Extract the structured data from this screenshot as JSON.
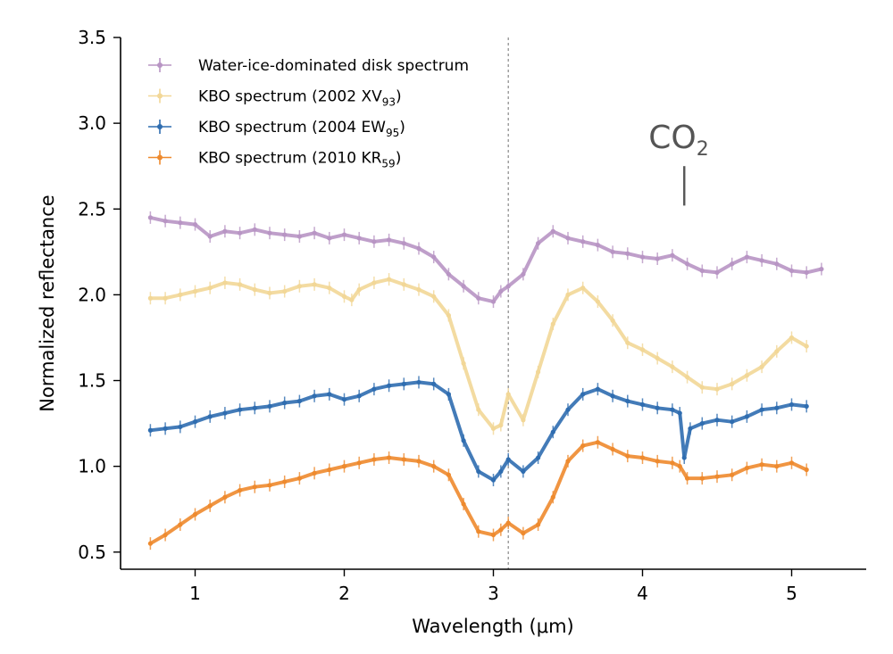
{
  "chart_data": {
    "type": "line",
    "xlabel": "Wavelength (μm)",
    "ylabel": "Normalized reflectance",
    "xlim": [
      0.5,
      5.5
    ],
    "ylim": [
      0.4,
      3.5
    ],
    "x_ticks": [
      1,
      2,
      3,
      4,
      5
    ],
    "y_ticks": [
      0.5,
      1.0,
      1.5,
      2.0,
      2.5,
      3.0,
      3.5
    ],
    "x_tick_labels": [
      "1",
      "2",
      "3",
      "4",
      "5"
    ],
    "y_tick_labels": [
      "0.5",
      "1.0",
      "1.5",
      "2.0",
      "2.5",
      "3.0",
      "3.5"
    ],
    "grid": false,
    "legend_position": "top-left",
    "reference_line": {
      "x": 3.1,
      "style": "dotted",
      "color": "#888888"
    },
    "annotation": {
      "text": "CO",
      "subscript": "2",
      "x": 4.28,
      "y_from": 2.52,
      "y_to": 2.75
    },
    "series": [
      {
        "name": "Water-ice-dominated disk spectrum",
        "legend_main": "Water-ice-dominated disk spectrum",
        "legend_sub": "",
        "legend_tail": "",
        "color": "#b895c4",
        "x": [
          0.7,
          0.8,
          0.9,
          1.0,
          1.1,
          1.2,
          1.3,
          1.4,
          1.5,
          1.6,
          1.7,
          1.8,
          1.9,
          2.0,
          2.1,
          2.2,
          2.3,
          2.4,
          2.5,
          2.6,
          2.7,
          2.8,
          2.9,
          3.0,
          3.05,
          3.1,
          3.2,
          3.3,
          3.4,
          3.5,
          3.6,
          3.7,
          3.8,
          3.9,
          4.0,
          4.1,
          4.2,
          4.3,
          4.4,
          4.5,
          4.6,
          4.7,
          4.8,
          4.9,
          5.0,
          5.1,
          5.2
        ],
        "y": [
          2.45,
          2.43,
          2.42,
          2.41,
          2.34,
          2.37,
          2.36,
          2.38,
          2.36,
          2.35,
          2.34,
          2.36,
          2.33,
          2.35,
          2.33,
          2.31,
          2.32,
          2.3,
          2.27,
          2.22,
          2.12,
          2.05,
          1.98,
          1.96,
          2.02,
          2.05,
          2.12,
          2.3,
          2.37,
          2.33,
          2.31,
          2.29,
          2.25,
          2.24,
          2.22,
          2.21,
          2.23,
          2.18,
          2.14,
          2.13,
          2.18,
          2.22,
          2.2,
          2.18,
          2.14,
          2.13,
          2.15
        ]
      },
      {
        "name": "KBO spectrum (2002 XV93)",
        "legend_main": "KBO spectrum (2002 XV",
        "legend_sub": "93",
        "legend_tail": ")",
        "color": "#f2d797",
        "x": [
          0.7,
          0.8,
          0.9,
          1.0,
          1.1,
          1.2,
          1.3,
          1.4,
          1.5,
          1.6,
          1.7,
          1.8,
          1.9,
          2.0,
          2.05,
          2.1,
          2.2,
          2.3,
          2.4,
          2.5,
          2.6,
          2.7,
          2.8,
          2.9,
          3.0,
          3.05,
          3.1,
          3.2,
          3.3,
          3.4,
          3.5,
          3.6,
          3.7,
          3.8,
          3.9,
          4.0,
          4.1,
          4.2,
          4.3,
          4.4,
          4.5,
          4.6,
          4.7,
          4.8,
          4.9,
          5.0,
          5.1
        ],
        "y": [
          1.98,
          1.98,
          2.0,
          2.02,
          2.04,
          2.07,
          2.06,
          2.03,
          2.01,
          2.02,
          2.05,
          2.06,
          2.04,
          1.99,
          1.97,
          2.03,
          2.07,
          2.09,
          2.06,
          2.03,
          1.99,
          1.88,
          1.6,
          1.33,
          1.22,
          1.24,
          1.42,
          1.27,
          1.55,
          1.83,
          2.0,
          2.04,
          1.96,
          1.85,
          1.72,
          1.68,
          1.63,
          1.58,
          1.52,
          1.46,
          1.45,
          1.48,
          1.53,
          1.58,
          1.67,
          1.75,
          1.7
        ]
      },
      {
        "name": "KBO spectrum (2004 EW95)",
        "legend_main": "KBO spectrum (2004 EW",
        "legend_sub": "95",
        "legend_tail": ")",
        "color": "#2f6db0",
        "x": [
          0.7,
          0.8,
          0.9,
          1.0,
          1.1,
          1.2,
          1.3,
          1.4,
          1.5,
          1.6,
          1.7,
          1.8,
          1.9,
          2.0,
          2.1,
          2.2,
          2.3,
          2.4,
          2.5,
          2.6,
          2.7,
          2.8,
          2.9,
          3.0,
          3.05,
          3.1,
          3.2,
          3.3,
          3.4,
          3.5,
          3.6,
          3.7,
          3.8,
          3.9,
          4.0,
          4.1,
          4.2,
          4.25,
          4.28,
          4.32,
          4.4,
          4.5,
          4.6,
          4.7,
          4.8,
          4.9,
          5.0,
          5.1
        ],
        "y": [
          1.21,
          1.22,
          1.23,
          1.26,
          1.29,
          1.31,
          1.33,
          1.34,
          1.35,
          1.37,
          1.38,
          1.41,
          1.42,
          1.39,
          1.41,
          1.45,
          1.47,
          1.48,
          1.49,
          1.48,
          1.42,
          1.15,
          0.97,
          0.92,
          0.97,
          1.04,
          0.97,
          1.05,
          1.2,
          1.33,
          1.42,
          1.45,
          1.41,
          1.38,
          1.36,
          1.34,
          1.33,
          1.31,
          1.05,
          1.22,
          1.25,
          1.27,
          1.26,
          1.29,
          1.33,
          1.34,
          1.36,
          1.35
        ]
      },
      {
        "name": "KBO spectrum (2010 KR59)",
        "legend_main": "KBO spectrum (2010 KR",
        "legend_sub": "59",
        "legend_tail": ")",
        "color": "#ee8a2e",
        "x": [
          0.7,
          0.8,
          0.9,
          1.0,
          1.1,
          1.2,
          1.3,
          1.4,
          1.5,
          1.6,
          1.7,
          1.8,
          1.9,
          2.0,
          2.1,
          2.2,
          2.3,
          2.4,
          2.5,
          2.6,
          2.7,
          2.8,
          2.9,
          3.0,
          3.05,
          3.1,
          3.2,
          3.3,
          3.4,
          3.5,
          3.6,
          3.7,
          3.8,
          3.9,
          4.0,
          4.1,
          4.2,
          4.25,
          4.3,
          4.4,
          4.5,
          4.6,
          4.7,
          4.8,
          4.9,
          5.0,
          5.1
        ],
        "y": [
          0.55,
          0.6,
          0.66,
          0.72,
          0.77,
          0.82,
          0.86,
          0.88,
          0.89,
          0.91,
          0.93,
          0.96,
          0.98,
          1.0,
          1.02,
          1.04,
          1.05,
          1.04,
          1.03,
          1.0,
          0.95,
          0.78,
          0.62,
          0.6,
          0.63,
          0.67,
          0.61,
          0.66,
          0.82,
          1.03,
          1.12,
          1.14,
          1.1,
          1.06,
          1.05,
          1.03,
          1.02,
          1.0,
          0.93,
          0.93,
          0.94,
          0.95,
          0.99,
          1.01,
          1.0,
          1.02,
          0.98
        ]
      }
    ]
  }
}
